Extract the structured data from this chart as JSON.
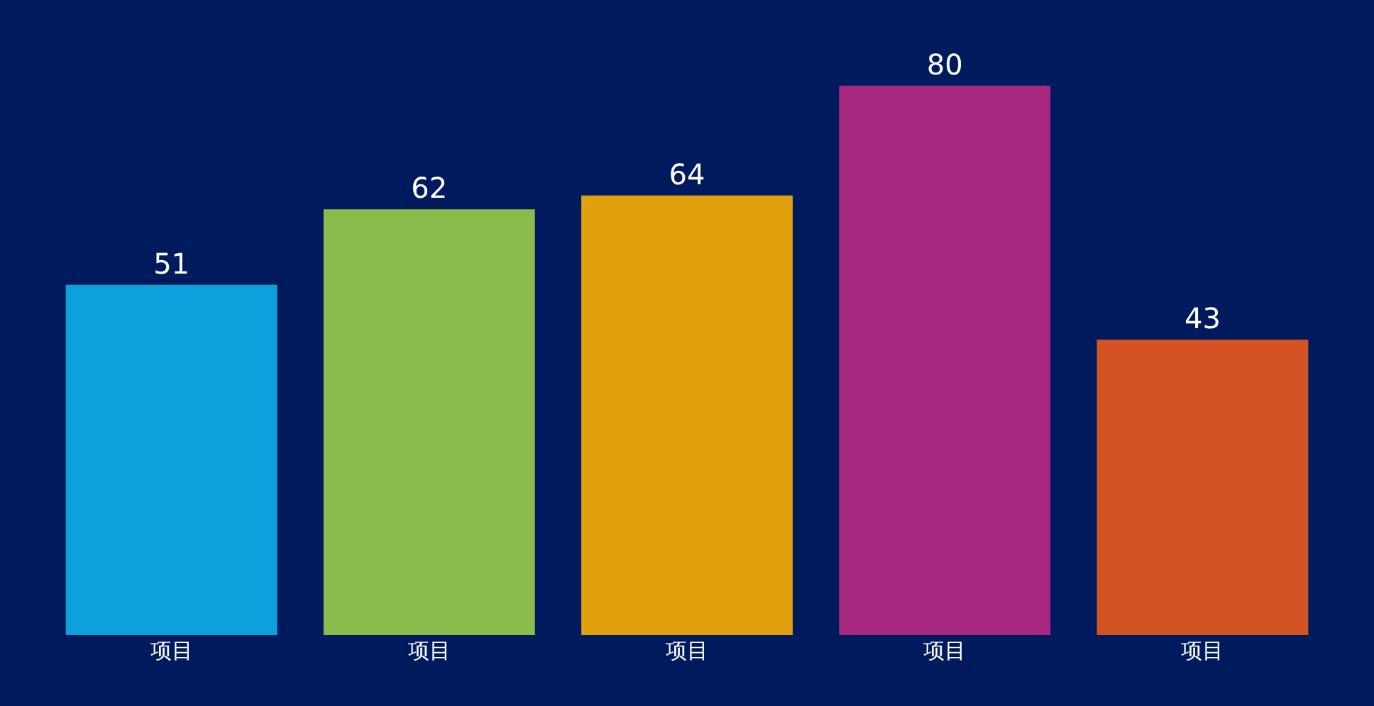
{
  "chart_data": {
    "type": "bar",
    "categories": [
      "项目",
      "项目",
      "项目",
      "项目",
      "项目"
    ],
    "values": [
      51,
      62,
      64,
      80,
      43
    ],
    "colors": [
      "#0ea0dc",
      "#8bbb4a",
      "#e0a10c",
      "#a7297f",
      "#d35322"
    ],
    "data_labels": true,
    "legend": false
  }
}
